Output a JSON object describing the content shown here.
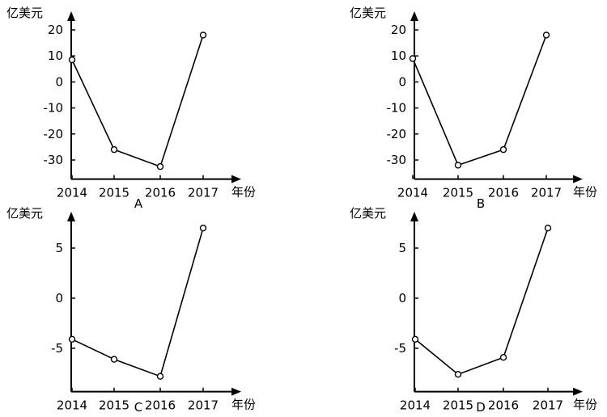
{
  "chart_data": [
    {
      "type": "line",
      "panel_label": "A",
      "ylabel": "亿美元",
      "xlabel": "年份",
      "categories": [
        "2014",
        "2015",
        "2016",
        "2017"
      ],
      "values": [
        8.5,
        -26,
        -32.5,
        18
      ],
      "yticks": [
        "20",
        "10",
        "0",
        "-10",
        "-20",
        "-30"
      ],
      "ylim": [
        -33,
        26
      ],
      "grid": false
    },
    {
      "type": "line",
      "panel_label": "B",
      "ylabel": "亿美元",
      "xlabel": "年份",
      "categories": [
        "2014",
        "2015",
        "2016",
        "2017"
      ],
      "values": [
        9,
        -32,
        -26,
        18
      ],
      "yticks": [
        "20",
        "10",
        "0",
        "-10",
        "-20",
        "-30"
      ],
      "ylim": [
        -33,
        26
      ],
      "grid": false
    },
    {
      "type": "line",
      "panel_label": "C",
      "ylabel": "亿美元",
      "xlabel": "年份",
      "categories": [
        "2014",
        "2015",
        "2016",
        "2017"
      ],
      "values": [
        -4.1,
        -6.1,
        -7.8,
        7
      ],
      "yticks": [
        "5",
        "0",
        "-5"
      ],
      "ylim": [
        -8.2,
        8.5
      ],
      "grid": false
    },
    {
      "type": "line",
      "panel_label": "D",
      "ylabel": "亿美元",
      "xlabel": "年份",
      "categories": [
        "2014",
        "2015",
        "2016",
        "2017"
      ],
      "values": [
        -4.1,
        -7.6,
        -5.9,
        7
      ],
      "yticks": [
        "5",
        "0",
        "-5"
      ],
      "ylim": [
        -8.2,
        8.5
      ],
      "grid": false
    }
  ]
}
